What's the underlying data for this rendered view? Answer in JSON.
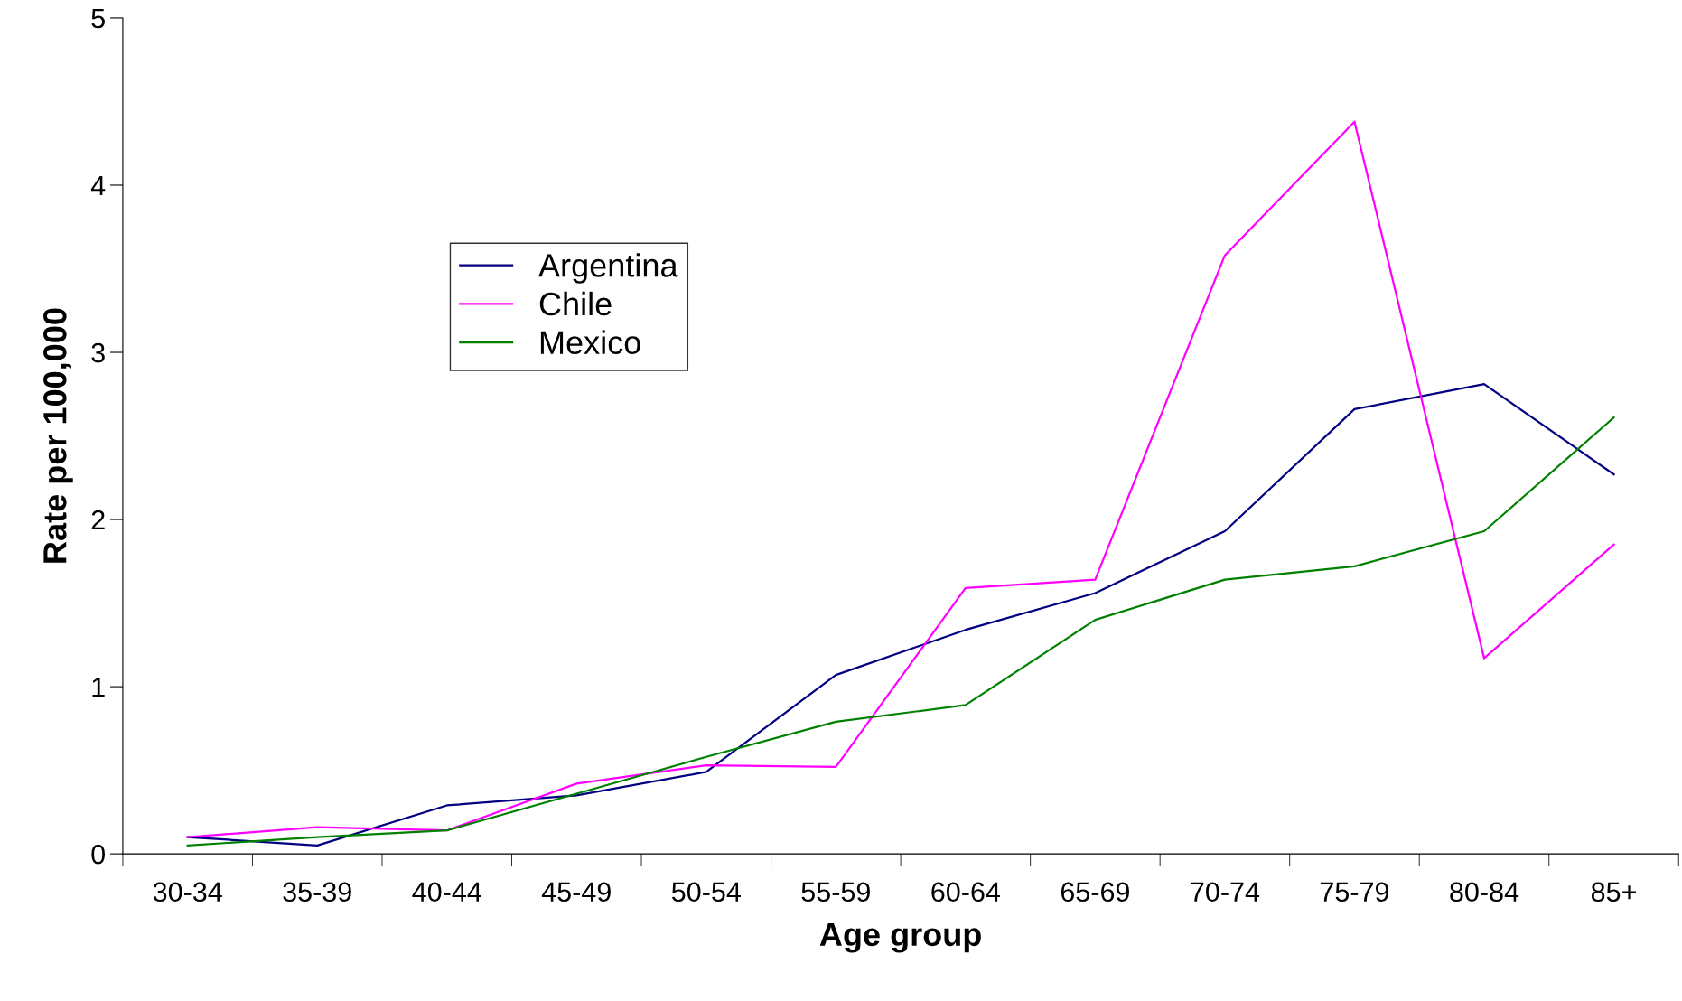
{
  "chart_data": {
    "type": "line",
    "xlabel": "Age group",
    "ylabel": "Rate per 100,000",
    "categories": [
      "30-34",
      "35-39",
      "40-44",
      "45-49",
      "50-54",
      "55-59",
      "60-64",
      "65-69",
      "70-74",
      "75-79",
      "80-84",
      "85+"
    ],
    "series": [
      {
        "name": "Argentina",
        "color": "#000080",
        "values": [
          0.1,
          0.05,
          0.29,
          0.35,
          0.49,
          1.07,
          1.34,
          1.56,
          1.93,
          2.66,
          2.81,
          2.27
        ]
      },
      {
        "name": "Chile",
        "color": "#ff00ff",
        "values": [
          0.1,
          0.16,
          0.14,
          0.42,
          0.53,
          0.52,
          1.59,
          1.64,
          3.58,
          4.38,
          1.17,
          1.85
        ]
      },
      {
        "name": "Mexico",
        "color": "#008000",
        "values": [
          0.05,
          0.1,
          0.14,
          0.36,
          0.58,
          0.79,
          0.89,
          1.4,
          1.64,
          1.72,
          1.93,
          2.61
        ]
      }
    ],
    "ylim": [
      0,
      5
    ],
    "yticks": [
      0,
      1,
      2,
      3,
      4,
      5
    ],
    "grid": false,
    "legend": "top left",
    "marker": "none",
    "line_style": "solid"
  }
}
